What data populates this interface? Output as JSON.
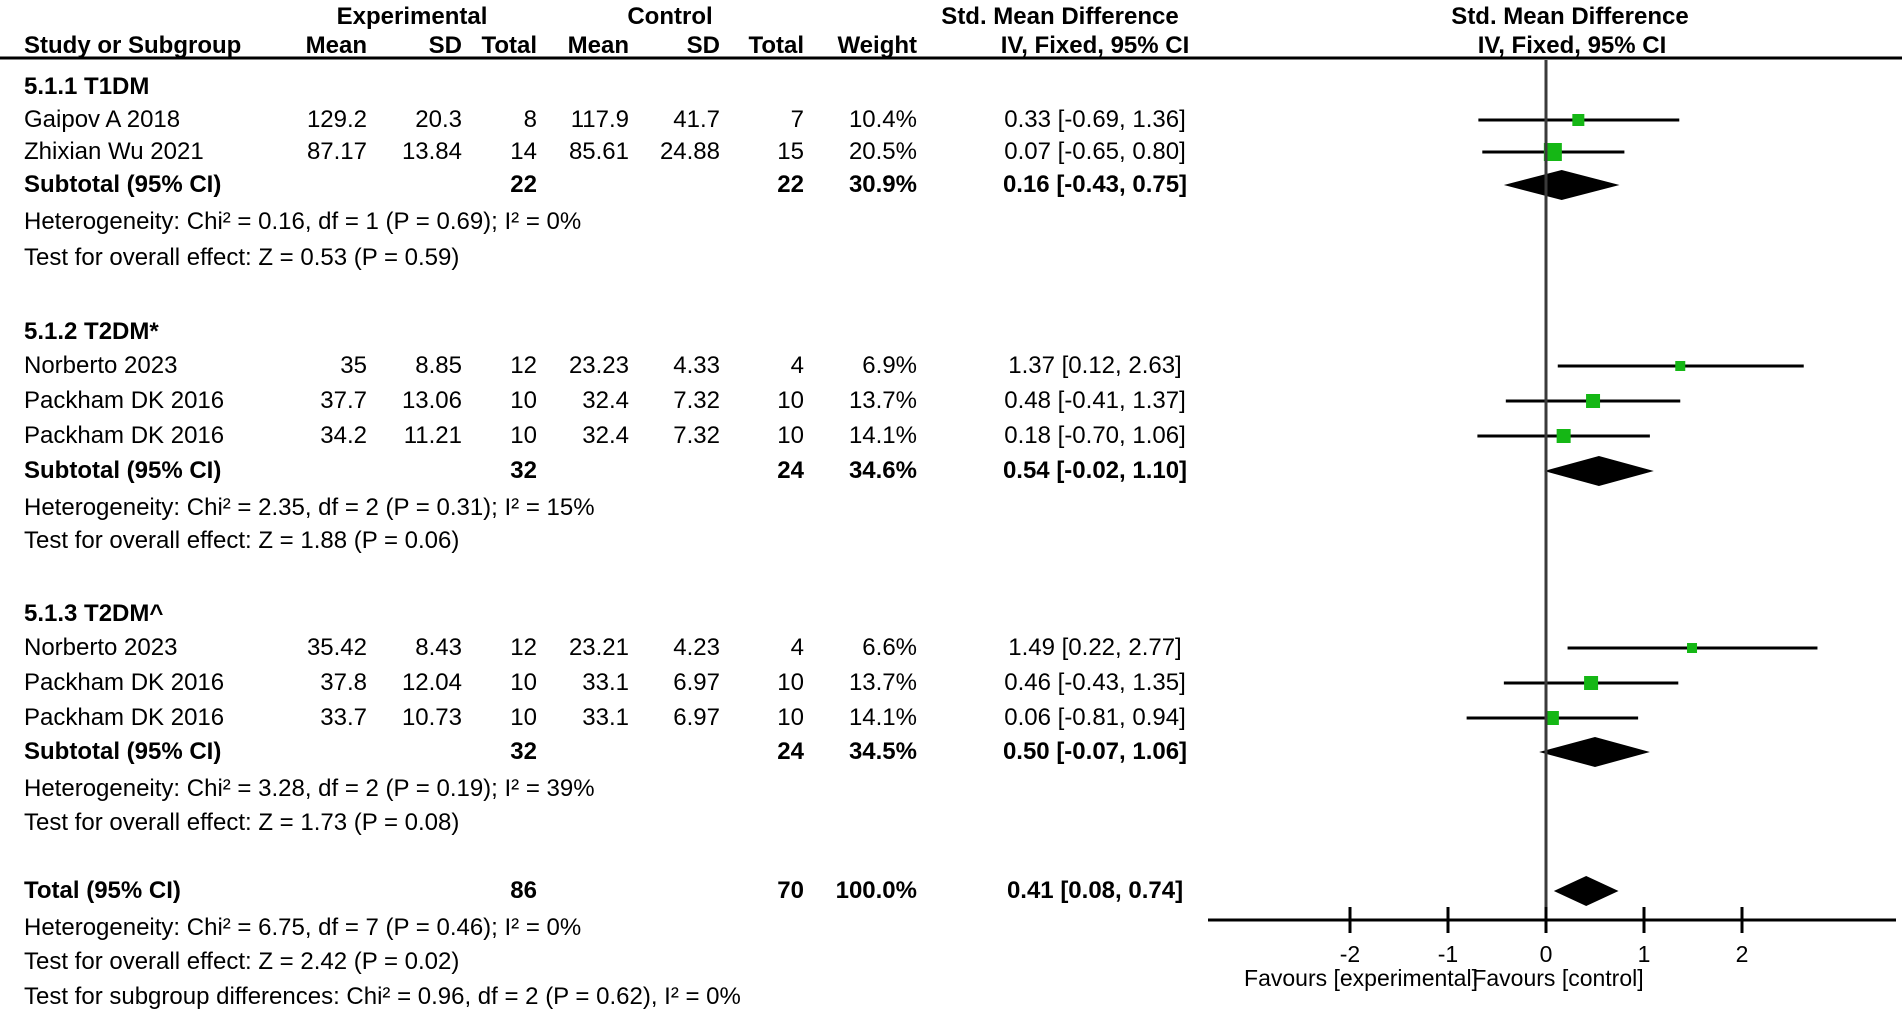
{
  "header": {
    "experimental": "Experimental",
    "control": "Control",
    "smd_left": "Std. Mean Difference",
    "smd_right": "Std. Mean Difference",
    "study_or_subgroup": "Study or Subgroup",
    "mean": "Mean",
    "sd": "SD",
    "total": "Total",
    "weight": "Weight",
    "method_left": "IV, Fixed, 95% CI",
    "method_right": "IV, Fixed, 95% CI"
  },
  "chart_data": {
    "type": "forest",
    "effect_measure": "Std. Mean Difference",
    "model": "IV, Fixed, 95% CI",
    "marker_color": "#15b715",
    "axis": {
      "ticks": [
        -2,
        -1,
        0,
        1,
        2
      ],
      "left_label": "Favours [experimental]",
      "right_label": "Favours [control]"
    },
    "groups": [
      {
        "label": "5.1.1 T1DM",
        "studies": [
          {
            "study": "Gaipov A 2018",
            "exp_mean": "129.2",
            "exp_sd": "20.3",
            "exp_total": "8",
            "ctl_mean": "117.9",
            "ctl_sd": "41.7",
            "ctl_total": "7",
            "weight": "10.4%",
            "weight_pct": 10.4,
            "ci_text": "0.33 [-0.69, 1.36]",
            "est": 0.33,
            "lo": -0.69,
            "hi": 1.36
          },
          {
            "study": "Zhixian Wu 2021",
            "exp_mean": "87.17",
            "exp_sd": "13.84",
            "exp_total": "14",
            "ctl_mean": "85.61",
            "ctl_sd": "24.88",
            "ctl_total": "15",
            "weight": "20.5%",
            "weight_pct": 20.5,
            "ci_text": "0.07 [-0.65, 0.80]",
            "est": 0.07,
            "lo": -0.65,
            "hi": 0.8
          }
        ],
        "subtotal": {
          "label": "Subtotal (95% CI)",
          "exp_total": "22",
          "ctl_total": "22",
          "weight": "30.9%",
          "ci_text": "0.16 [-0.43, 0.75]",
          "est": 0.16,
          "lo": -0.43,
          "hi": 0.75
        },
        "heterogeneity": "Heterogeneity: Chi² = 0.16, df = 1 (P = 0.69); I² = 0%",
        "overall_effect": "Test for overall effect: Z = 0.53 (P = 0.59)"
      },
      {
        "label": "5.1.2 T2DM*",
        "studies": [
          {
            "study": "Norberto 2023",
            "exp_mean": "35",
            "exp_sd": "8.85",
            "exp_total": "12",
            "ctl_mean": "23.23",
            "ctl_sd": "4.33",
            "ctl_total": "4",
            "weight": "6.9%",
            "weight_pct": 6.9,
            "ci_text": "1.37 [0.12, 2.63]",
            "est": 1.37,
            "lo": 0.12,
            "hi": 2.63
          },
          {
            "study": "Packham DK 2016",
            "exp_mean": "37.7",
            "exp_sd": "13.06",
            "exp_total": "10",
            "ctl_mean": "32.4",
            "ctl_sd": "7.32",
            "ctl_total": "10",
            "weight": "13.7%",
            "weight_pct": 13.7,
            "ci_text": "0.48 [-0.41, 1.37]",
            "est": 0.48,
            "lo": -0.41,
            "hi": 1.37
          },
          {
            "study": "Packham DK 2016",
            "exp_mean": "34.2",
            "exp_sd": "11.21",
            "exp_total": "10",
            "ctl_mean": "32.4",
            "ctl_sd": "7.32",
            "ctl_total": "10",
            "weight": "14.1%",
            "weight_pct": 14.1,
            "ci_text": "0.18 [-0.70, 1.06]",
            "est": 0.18,
            "lo": -0.7,
            "hi": 1.06
          }
        ],
        "subtotal": {
          "label": "Subtotal (95% CI)",
          "exp_total": "32",
          "ctl_total": "24",
          "weight": "34.6%",
          "ci_text": "0.54 [-0.02, 1.10]",
          "est": 0.54,
          "lo": -0.02,
          "hi": 1.1
        },
        "heterogeneity": "Heterogeneity: Chi² = 2.35, df = 2 (P = 0.31); I² = 15%",
        "overall_effect": "Test for overall effect: Z = 1.88 (P = 0.06)"
      },
      {
        "label": "5.1.3 T2DM^",
        "studies": [
          {
            "study": "Norberto 2023",
            "exp_mean": "35.42",
            "exp_sd": "8.43",
            "exp_total": "12",
            "ctl_mean": "23.21",
            "ctl_sd": "4.23",
            "ctl_total": "4",
            "weight": "6.6%",
            "weight_pct": 6.6,
            "ci_text": "1.49 [0.22, 2.77]",
            "est": 1.49,
            "lo": 0.22,
            "hi": 2.77
          },
          {
            "study": "Packham DK 2016",
            "exp_mean": "37.8",
            "exp_sd": "12.04",
            "exp_total": "10",
            "ctl_mean": "33.1",
            "ctl_sd": "6.97",
            "ctl_total": "10",
            "weight": "13.7%",
            "weight_pct": 13.7,
            "ci_text": "0.46 [-0.43, 1.35]",
            "est": 0.46,
            "lo": -0.43,
            "hi": 1.35
          },
          {
            "study": "Packham DK 2016",
            "exp_mean": "33.7",
            "exp_sd": "10.73",
            "exp_total": "10",
            "ctl_mean": "33.1",
            "ctl_sd": "6.97",
            "ctl_total": "10",
            "weight": "14.1%",
            "weight_pct": 14.1,
            "ci_text": "0.06 [-0.81, 0.94]",
            "est": 0.06,
            "lo": -0.81,
            "hi": 0.94
          }
        ],
        "subtotal": {
          "label": "Subtotal (95% CI)",
          "exp_total": "32",
          "ctl_total": "24",
          "weight": "34.5%",
          "ci_text": "0.50 [-0.07, 1.06]",
          "est": 0.5,
          "lo": -0.07,
          "hi": 1.06
        },
        "heterogeneity": "Heterogeneity: Chi² = 3.28, df = 2 (P = 0.19); I² = 39%",
        "overall_effect": "Test for overall effect: Z = 1.73 (P = 0.08)"
      }
    ],
    "total": {
      "label": "Total (95% CI)",
      "exp_total": "86",
      "ctl_total": "70",
      "weight": "100.0%",
      "ci_text": "0.41 [0.08, 0.74]",
      "est": 0.41,
      "lo": 0.08,
      "hi": 0.74,
      "heterogeneity": "Heterogeneity: Chi² = 6.75, df = 7 (P = 0.46); I² = 0%",
      "overall_effect": "Test for overall effect: Z = 2.42 (P = 0.02)",
      "subgroup_differences": "Test for subgroup differences: Chi² = 0.96, df = 2 (P = 0.62), I² = 0%"
    }
  }
}
